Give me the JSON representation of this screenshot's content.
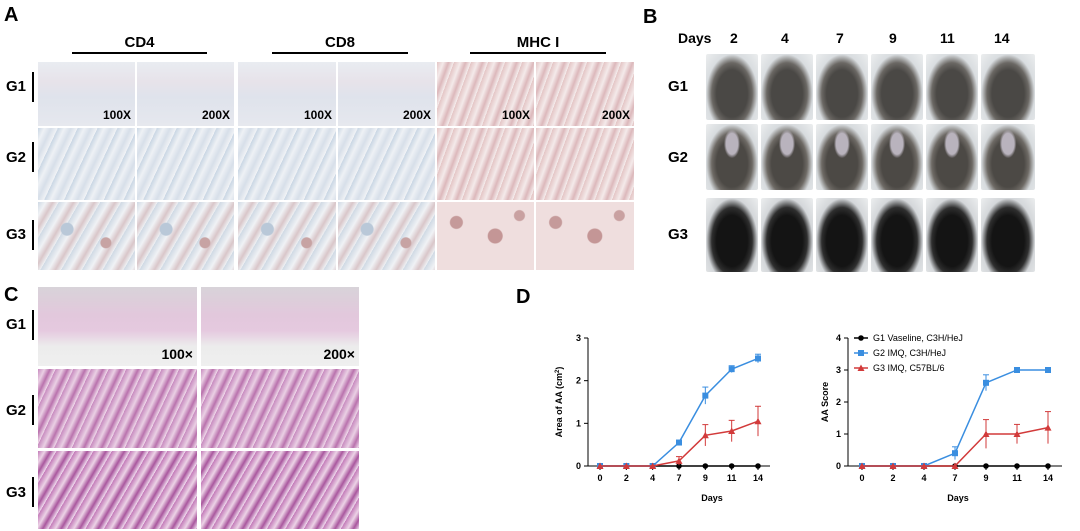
{
  "panels": {
    "A": {
      "letter": "A",
      "headers": [
        "CD4",
        "CD8",
        "MHC I"
      ],
      "groups": [
        "G1",
        "G2",
        "G3"
      ],
      "magnifications": [
        "100X",
        "200X",
        "100X",
        "200X",
        "100X",
        "200X"
      ]
    },
    "B": {
      "letter": "B",
      "days_label": "Days",
      "days": [
        "2",
        "4",
        "7",
        "9",
        "11",
        "14"
      ],
      "groups": [
        "G1",
        "G2",
        "G3"
      ]
    },
    "C": {
      "letter": "C",
      "groups": [
        "G1",
        "G2",
        "G3"
      ],
      "magnifications": [
        "100×",
        "200×"
      ]
    },
    "D": {
      "letter": "D"
    }
  },
  "chart_data": [
    {
      "type": "line",
      "xlabel": "Days",
      "ylabel": "Area of AA (cm²)",
      "ylabel_base": "Area of AA (cm",
      "ylabel_sup": "2",
      "ylabel_close": ")",
      "x": [
        0,
        2,
        4,
        7,
        9,
        11,
        14
      ],
      "x_ticks": [
        "0",
        "2",
        "4",
        "7",
        "9",
        "11",
        "14"
      ],
      "ylim": [
        0,
        3
      ],
      "y_ticks": [
        "0",
        "1",
        "2",
        "3"
      ],
      "series": [
        {
          "name": "G1 Vaseline, C3H/HeJ",
          "values": [
            0,
            0,
            0,
            0,
            0,
            0,
            0
          ],
          "err": [
            0,
            0,
            0,
            0,
            0,
            0,
            0
          ],
          "color": "#000000",
          "marker": "circle"
        },
        {
          "name": "G2 IMQ, C3H/HeJ",
          "values": [
            0,
            0,
            0,
            0.55,
            1.65,
            2.27,
            2.52
          ],
          "err": [
            0,
            0,
            0,
            0.05,
            0.2,
            0.08,
            0.1
          ],
          "color": "#3a8ee0",
          "marker": "square"
        },
        {
          "name": "G3 IMQ, C57BL/6",
          "values": [
            0,
            0,
            0,
            0.12,
            0.72,
            0.82,
            1.05
          ],
          "err": [
            0,
            0,
            0,
            0.1,
            0.25,
            0.25,
            0.35
          ],
          "color": "#d23a3a",
          "marker": "triangle"
        }
      ]
    },
    {
      "type": "line",
      "xlabel": "Days",
      "ylabel": "AA Score",
      "x": [
        0,
        2,
        4,
        7,
        9,
        11,
        14
      ],
      "x_ticks": [
        "0",
        "2",
        "4",
        "7",
        "9",
        "11",
        "14"
      ],
      "ylim": [
        0,
        4
      ],
      "y_ticks": [
        "0",
        "1",
        "2",
        "3",
        "4"
      ],
      "legend_position": "top-left",
      "series": [
        {
          "name": "G1 Vaseline, C3H/HeJ",
          "values": [
            0,
            0,
            0,
            0,
            0,
            0,
            0
          ],
          "err": [
            0,
            0,
            0,
            0,
            0,
            0,
            0
          ],
          "color": "#000000",
          "marker": "circle"
        },
        {
          "name": "G2 IMQ, C3H/HeJ",
          "values": [
            0,
            0,
            0,
            0.4,
            2.6,
            3.0,
            3.0
          ],
          "err": [
            0,
            0,
            0,
            0.2,
            0.25,
            0,
            0
          ],
          "color": "#3a8ee0",
          "marker": "square"
        },
        {
          "name": "G3 IMQ, C57BL/6",
          "values": [
            0,
            0,
            0,
            0,
            1.0,
            1.0,
            1.2
          ],
          "err": [
            0,
            0,
            0,
            0,
            0.45,
            0.3,
            0.5
          ],
          "color": "#d23a3a",
          "marker": "triangle"
        }
      ]
    }
  ]
}
